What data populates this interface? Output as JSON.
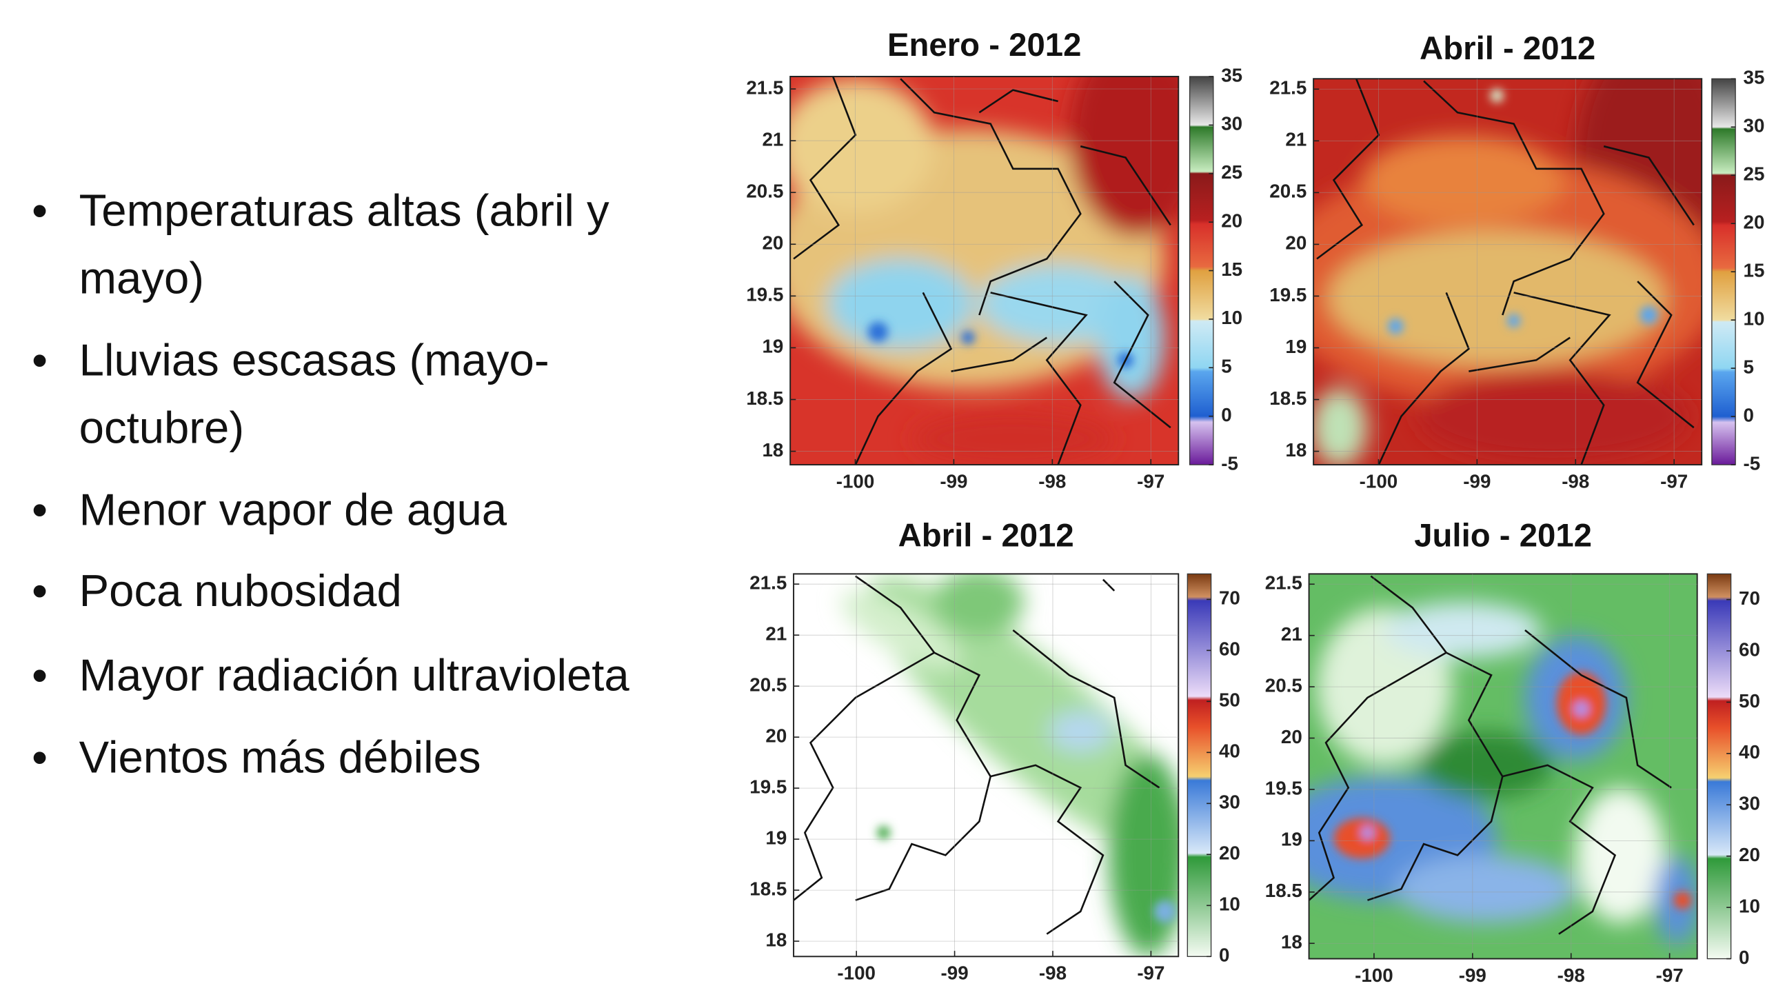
{
  "bullets": [
    {
      "lines": [
        "Temperaturas altas (abril y",
        "mayo)"
      ]
    },
    {
      "lines": [
        "Lluvias escasas (mayo-",
        "octubre)"
      ]
    },
    {
      "lines": [
        "Menor vapor de agua"
      ]
    },
    {
      "lines": [
        "Poca nubosidad"
      ]
    },
    {
      "lines": [
        "Mayor radiación ultravioleta"
      ]
    },
    {
      "lines": [
        "Vientos más débiles"
      ]
    }
  ],
  "panels": [
    {
      "title": "Enero - 2012",
      "xlim": [
        -100.66,
        -96.72
      ],
      "ylim": [
        17.87,
        21.62
      ],
      "xticks": [
        -100,
        -99,
        -98,
        -97
      ],
      "yticks": [
        18,
        18.5,
        19,
        19.5,
        20,
        20.5,
        21,
        21.5
      ],
      "clim": [
        -5,
        35
      ],
      "cticks": [
        -5,
        0,
        5,
        10,
        15,
        20,
        25,
        30,
        35
      ]
    },
    {
      "title": "Abril - 2012",
      "xlim": [
        -100.66,
        -96.72
      ],
      "ylim": [
        17.87,
        21.6
      ],
      "xticks": [
        -100,
        -99,
        -98,
        -97
      ],
      "yticks": [
        18,
        18.5,
        19,
        19.5,
        20,
        20.5,
        21,
        21.5
      ],
      "clim": [
        -5,
        35
      ],
      "cticks": [
        -5,
        0,
        5,
        10,
        15,
        20,
        25,
        30,
        35
      ]
    },
    {
      "title": "Abril - 2012",
      "xlim": [
        -100.64,
        -96.72
      ],
      "ylim": [
        17.85,
        21.6
      ],
      "xticks": [
        -100,
        -99,
        -98,
        -97
      ],
      "yticks": [
        18,
        18.5,
        19,
        19.5,
        20,
        20.5,
        21,
        21.5
      ],
      "clim": [
        0,
        75
      ],
      "cticks": [
        0,
        10,
        20,
        30,
        40,
        50,
        60,
        70
      ]
    },
    {
      "title": "Julio - 2012",
      "xlim": [
        -100.66,
        -96.72
      ],
      "ylim": [
        17.85,
        21.6
      ],
      "xticks": [
        -100,
        -99,
        -98,
        -97
      ],
      "yticks": [
        18,
        18.5,
        19,
        19.5,
        20,
        20.5,
        21,
        21.5
      ],
      "clim": [
        0,
        75
      ],
      "cticks": [
        0,
        10,
        20,
        30,
        40,
        50,
        60,
        70
      ]
    }
  ]
}
